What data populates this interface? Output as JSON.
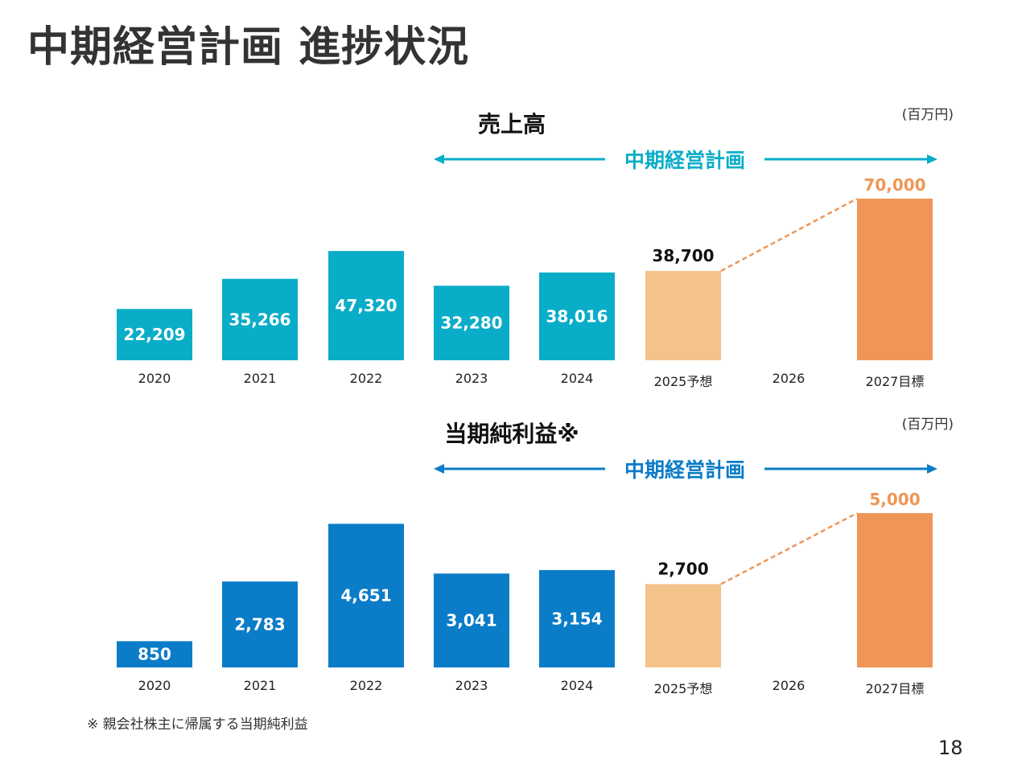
{
  "slide": {
    "title": "中期経営計画 進捗状況",
    "footnote": "※ 親会社株主に帰属する当期純利益",
    "page_number": "18"
  },
  "colors": {
    "sales_bar": "#0aadc8",
    "profit_bar": "#0a7cc8",
    "forecast_bar": "#f3c38a",
    "target_bar": "#ef9656",
    "target_label": "#ef9656",
    "title_text": "#333333"
  },
  "chart_data": [
    {
      "type": "bar",
      "title": "売上高",
      "unit": "(百万円)",
      "period_label": "中期経営計画",
      "categories": [
        "2020",
        "2021",
        "2022",
        "2023",
        "2024",
        "2025予想",
        "2026",
        "2027目標"
      ],
      "values": [
        22209,
        35266,
        47320,
        32280,
        38016,
        38700,
        null,
        70000
      ],
      "value_labels": [
        "22,209",
        "35,266",
        "47,320",
        "32,280",
        "38,016",
        "38,700",
        "",
        "70,000"
      ],
      "bar_kinds": [
        "actual",
        "actual",
        "actual",
        "actual",
        "actual",
        "forecast",
        "none",
        "target"
      ],
      "dashed_line": {
        "from": "2025予想",
        "to": "2027目標"
      }
    },
    {
      "type": "bar",
      "title": "当期純利益※",
      "unit": "(百万円)",
      "period_label": "中期経営計画",
      "categories": [
        "2020",
        "2021",
        "2022",
        "2023",
        "2024",
        "2025予想",
        "2026",
        "2027目標"
      ],
      "values": [
        850,
        2783,
        4651,
        3041,
        3154,
        2700,
        null,
        5000
      ],
      "value_labels": [
        "850",
        "2,783",
        "4,651",
        "3,041",
        "3,154",
        "2,700",
        "",
        "5,000"
      ],
      "bar_kinds": [
        "actual",
        "actual",
        "actual",
        "actual",
        "actual",
        "forecast",
        "none",
        "target"
      ],
      "dashed_line": {
        "from": "2025予想",
        "to": "2027目標"
      }
    }
  ]
}
